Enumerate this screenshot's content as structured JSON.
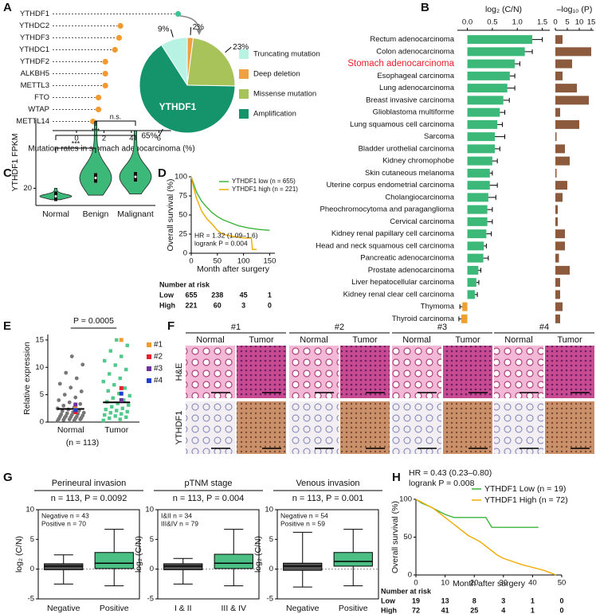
{
  "figure": {
    "panels": [
      "A",
      "B",
      "C",
      "D",
      "E",
      "F",
      "G",
      "H"
    ]
  },
  "histology": {
    "cases": [
      {
        "name": "#1",
        "normal": "Normal",
        "tumor": "Tumor"
      },
      {
        "name": "#2",
        "normal": "Normal",
        "tumor": "Tumor"
      },
      {
        "name": "#3",
        "normal": "Normal",
        "tumor": "Tumor"
      },
      {
        "name": "#4",
        "normal": "Normal",
        "tumor": "Tumor"
      }
    ],
    "rows": [
      "H&E",
      "YTHDF1"
    ]
  },
  "chart_data": [
    {
      "type": "dot",
      "categories": [
        "YTHDF1",
        "YTHDC2",
        "YTHDF3",
        "YTHDC1",
        "YTHDF2",
        "ALKBH5",
        "METTL3",
        "FTO",
        "WTAP",
        "METTL14"
      ],
      "values": [
        7.4,
        3.2,
        3.1,
        2.8,
        2.1,
        2.1,
        2.1,
        1.6,
        1.6,
        1.2
      ],
      "colors": [
        "#3cc495",
        "#f39a2e",
        "#f39a2e",
        "#f39a2e",
        "#f39a2e",
        "#f39a2e",
        "#f39a2e",
        "#f39a2e",
        "#f39a2e",
        "#f39a2e"
      ],
      "xlim": [
        0,
        7.6
      ],
      "xticks": [
        0,
        2,
        4,
        6
      ],
      "xlabel": "Mutation rates in stomach adenocarcinoma (%)"
    },
    {
      "type": "pie",
      "center_label": "YTHDF1",
      "categories": [
        "Truncating mutation",
        "Deep deletion",
        "Missense mutation",
        "Amplification"
      ],
      "values": [
        9,
        2,
        23,
        65
      ],
      "value_labels": [
        "9%",
        "2%",
        "23%",
        "65%"
      ],
      "colors": [
        "#b8f2e2",
        "#f0a040",
        "#a9c35b",
        "#15936a"
      ]
    },
    {
      "type": "hbar",
      "categories": [
        "Rectum adenocarcinoma",
        "Colon adenocarcinoma",
        "Stomach adenocarcinoma",
        "Esophageal carcinoma",
        "Lung adenocarcinoma",
        "Breast invasive carcinoma",
        "Glioblastoma multiforme",
        "Lung squamous cell carcinoma",
        "Sarcoma",
        "Bladder urothelial carcinoma",
        "Kidney chromophobe",
        "Skin cutaneous melanoma",
        "Uterine corpus endometrial carcinoma",
        "Cholangiocarcinoma",
        "Pheochromocytoma and paraganglioma",
        "Cervical carcinoma",
        "Kidney renal papillary cell carcinoma",
        "Head and neck squamous cell carcinoma",
        "Pancreatic adenocarcinoma",
        "Prostate adenocarcinoma",
        "Liver hepatocellular carcinoma",
        "Kidney renal clear cell carcinoma",
        "Thymoma",
        "Thyroid carcinoma"
      ],
      "values": [
        1.3,
        1.15,
        0.95,
        0.85,
        0.8,
        0.72,
        0.65,
        0.6,
        0.55,
        0.55,
        0.5,
        0.45,
        0.45,
        0.42,
        0.4,
        0.4,
        0.38,
        0.33,
        0.32,
        0.22,
        0.18,
        0.15,
        -0.1,
        -0.12
      ],
      "errors": [
        0.2,
        0.15,
        0.1,
        0.1,
        0.15,
        0.12,
        0.1,
        0.1,
        0.2,
        0.1,
        0.1,
        0.05,
        0.15,
        0.15,
        0.1,
        0.1,
        0.1,
        0.05,
        0.1,
        0.05,
        0.05,
        0.05,
        0.05,
        0.05
      ],
      "label_colors": [
        "#111",
        "#111",
        "#e8202a",
        "#111",
        "#111",
        "#111",
        "#111",
        "#111",
        "#111",
        "#111",
        "#111",
        "#111",
        "#111",
        "#111",
        "#111",
        "#111",
        "#111",
        "#111",
        "#111",
        "#111",
        "#111",
        "#111",
        "#111",
        "#111"
      ],
      "color": "#3cb878",
      "negative_color": "#f0a030",
      "xlim": [
        -0.2,
        1.65
      ],
      "xticks": [
        {
          "value": 0,
          "label": "0.0"
        },
        {
          "value": 0.5,
          "label": "0.5"
        },
        {
          "value": 1,
          "label": "1.0"
        },
        {
          "value": 1.5,
          "label": "1.5"
        }
      ],
      "xlabel": "log₂ (C/N)"
    },
    {
      "type": "hbar",
      "values": [
        3,
        15,
        7,
        3,
        9,
        14,
        2,
        10,
        0.5,
        4,
        6,
        0.5,
        5,
        3,
        1,
        1,
        4,
        4,
        1.5,
        6,
        2,
        2,
        3,
        2
      ],
      "color": "#8c5a3c",
      "xlim": [
        0,
        16
      ],
      "xticks": [
        0,
        5,
        10,
        15
      ],
      "xlabel": "–log₁₀ (P)"
    },
    {
      "type": "violin",
      "categories": [
        "Normal",
        "Benign",
        "Malignant"
      ],
      "values": [
        13,
        29,
        30
      ],
      "mins": [
        10,
        14,
        15
      ],
      "maxs": [
        20,
        78,
        70
      ],
      "color": "#3cb878",
      "ylim": [
        5,
        80
      ],
      "yticks": [
        20
      ],
      "ylabel": "YTHDF1 FPKM",
      "annotations": [
        "***",
        "n.s.",
        "***"
      ]
    },
    {
      "type": "line",
      "series": [
        {
          "name": "YTHDF1 low (n = 655)",
          "color": "#3cb43c",
          "x": [
            0,
            5,
            10,
            20,
            30,
            40,
            50,
            60,
            75,
            90,
            110,
            130,
            150
          ],
          "values": [
            100,
            90,
            80,
            68,
            60,
            53,
            48,
            44,
            40,
            36,
            33,
            31,
            30
          ]
        },
        {
          "name": "YTHDF1 high (n = 221)",
          "color": "#f0aa00",
          "x": [
            0,
            5,
            10,
            20,
            30,
            40,
            50,
            60,
            80,
            100,
            115,
            117,
            125
          ],
          "values": [
            100,
            85,
            72,
            55,
            45,
            38,
            30,
            25,
            22,
            20,
            20,
            5,
            5
          ]
        }
      ],
      "xlim": [
        0,
        160
      ],
      "xticks": [
        0,
        50,
        100,
        150
      ],
      "ylim": [
        0,
        100
      ],
      "yticks": [
        0,
        25,
        50,
        75,
        100
      ],
      "xlabel": "Month after surgery",
      "ylabel": "Overall survival (%)",
      "annotations": [
        "HR = 1.32 (1.09–1.6)",
        "logrank P = 0.004"
      ],
      "risk_title": "Number at risk",
      "risk_rows": [
        {
          "name": "Low",
          "values": [
            655,
            238,
            45,
            1
          ]
        },
        {
          "name": "High",
          "values": [
            221,
            60,
            3,
            0
          ]
        }
      ]
    },
    {
      "type": "strip",
      "categories": [
        "Normal",
        "Tumor"
      ],
      "values": [
        [
          0.2,
          0.3,
          0.4,
          0.5,
          0.5,
          0.6,
          0.7,
          0.8,
          0.8,
          0.9,
          1.0,
          1.0,
          1.1,
          1.2,
          1.3,
          1.4,
          1.5,
          1.6,
          1.7,
          1.8,
          2.0,
          2.1,
          2.3,
          2.5,
          2.7,
          3.0,
          3.3,
          3.6,
          4.0,
          4.5,
          5.0,
          5.6,
          6.3,
          7.0,
          8.0,
          9.0,
          10.5,
          12.0
        ],
        [
          0.3,
          0.5,
          0.7,
          0.9,
          1.1,
          1.3,
          1.5,
          1.7,
          1.9,
          2.1,
          2.3,
          2.5,
          2.8,
          3.1,
          3.4,
          3.7,
          4.0,
          4.4,
          4.8,
          5.2,
          5.7,
          6.2,
          6.8,
          7.4,
          8.0,
          8.8,
          9.6,
          10.4,
          11.2,
          12.0,
          13.0,
          14.0,
          15.0
        ]
      ],
      "means": [
        2.4,
        3.6
      ],
      "colors": [
        "#777777",
        "#52c98a"
      ],
      "highlights": [
        {
          "name": "#1",
          "color": "#f39a2e",
          "values": [
            2.5,
            15
          ]
        },
        {
          "name": "#2",
          "color": "#e8202a",
          "values": [
            1.8,
            6.2
          ]
        },
        {
          "name": "#3",
          "color": "#7030a0",
          "values": [
            3.2,
            4
          ]
        },
        {
          "name": "#4",
          "color": "#1f3fd0",
          "values": [
            2.2,
            5.2
          ]
        }
      ],
      "ylim": [
        0,
        16
      ],
      "yticks": [
        0,
        5,
        10,
        15
      ],
      "ylabel": "Relative expression",
      "annotation": "P = 0.0005",
      "note": "(n = 113)"
    },
    {
      "type": "box",
      "title": "Perineural invasion",
      "subtitle": "n = 113, P = 0.0092",
      "annotations": [
        "Negative n = 43",
        "Positive n = 70"
      ],
      "categories": [
        "Negative",
        "Positive"
      ],
      "boxes": [
        {
          "min": -2.5,
          "q1": -0.1,
          "median": 0.5,
          "q3": 0.9,
          "max": 2.4
        },
        {
          "min": -2.8,
          "q1": 0.1,
          "median": 1.0,
          "q3": 2.8,
          "max": 6.7
        }
      ],
      "colors": [
        "#555555",
        "#4cbf84"
      ],
      "ylim": [
        -5,
        10
      ],
      "yticks": [
        -5,
        0,
        5,
        10
      ],
      "ylabel": "log₂ (C/N)"
    },
    {
      "type": "box",
      "title": "pTNM stage",
      "subtitle": "n = 113, P = 0.004",
      "annotations": [
        "I&II n = 34",
        "III&IV n = 79"
      ],
      "categories": [
        "I & II",
        "III & IV"
      ],
      "boxes": [
        {
          "min": -2.5,
          "q1": -0.1,
          "median": 0.5,
          "q3": 0.9,
          "max": 1.8
        },
        {
          "min": -2.8,
          "q1": 0.1,
          "median": 1.0,
          "q3": 2.5,
          "max": 6.7
        }
      ],
      "colors": [
        "#555555",
        "#4cbf84"
      ],
      "ylim": [
        -5,
        10
      ],
      "yticks": [
        -5,
        0,
        5,
        10
      ],
      "ylabel": "log₂ (C/N)"
    },
    {
      "type": "box",
      "title": "Venous invasion",
      "subtitle": "n = 113, P = 0.001",
      "annotations": [
        "Negative n = 54",
        "Positive n = 59"
      ],
      "categories": [
        "Negative",
        "Positive"
      ],
      "boxes": [
        {
          "min": -3,
          "q1": -0.2,
          "median": 0.5,
          "q3": 1.0,
          "max": 6.2
        },
        {
          "min": -2.8,
          "q1": 0.5,
          "median": 1.3,
          "q3": 2.8,
          "max": 6.7
        }
      ],
      "colors": [
        "#555555",
        "#4cbf84"
      ],
      "ylim": [
        -5,
        10
      ],
      "yticks": [
        -5,
        0,
        5,
        10
      ],
      "ylabel": "log₂ (C/N)"
    },
    {
      "type": "line",
      "series": [
        {
          "name": "YTHDF1 Low (n = 19)",
          "color": "#3cb43c",
          "x": [
            0,
            2,
            5,
            8,
            10,
            13,
            24,
            26,
            42
          ],
          "values": [
            100,
            95,
            90,
            84,
            80,
            76,
            76,
            63,
            63
          ]
        },
        {
          "name": "YTHDF1 High (n = 72)",
          "color": "#f0aa00",
          "x": [
            0,
            2,
            4,
            6,
            8,
            10,
            12,
            14,
            16,
            18,
            20,
            22,
            24,
            26,
            28,
            30,
            33,
            36,
            40,
            44,
            48
          ],
          "values": [
            100,
            96,
            92,
            88,
            82,
            76,
            70,
            64,
            58,
            52,
            48,
            44,
            38,
            32,
            26,
            22,
            18,
            14,
            10,
            6,
            0
          ]
        }
      ],
      "xlim": [
        0,
        50
      ],
      "xticks": [
        0,
        10,
        20,
        30,
        40,
        50
      ],
      "ylim": [
        0,
        100
      ],
      "yticks": [
        0,
        50,
        100
      ],
      "xlabel": "Month after surgery",
      "ylabel": "Overall survival (%)",
      "annotations": [
        "HR = 0.43 (0.23–0.80)",
        "logrank P = 0.008"
      ],
      "risk_title": "Number at risk",
      "risk_rows": [
        {
          "name": "Low",
          "values": [
            19,
            13,
            8,
            3,
            1,
            0
          ]
        },
        {
          "name": "High",
          "values": [
            72,
            41,
            25,
            4,
            1,
            0
          ]
        }
      ]
    }
  ]
}
